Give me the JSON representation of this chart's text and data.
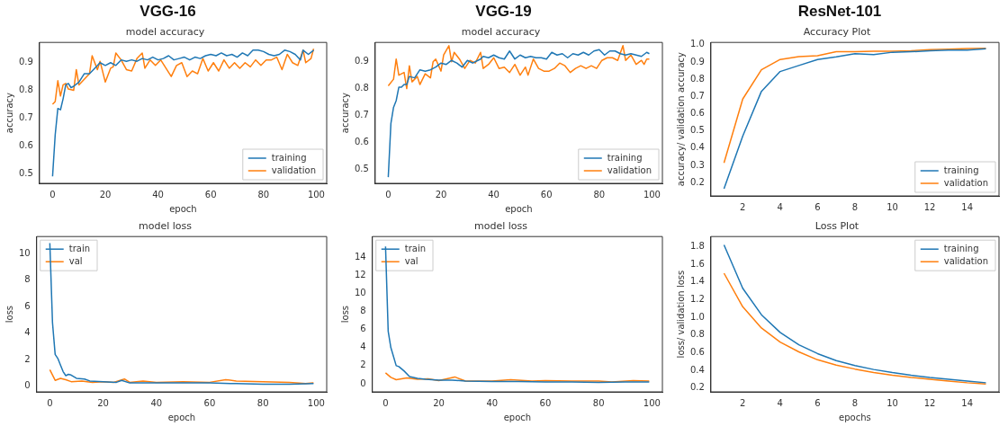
{
  "chart_data": [
    {
      "type": "line",
      "title": "VGG-16",
      "subtitle": "model accuracy",
      "xlabel": "epoch",
      "ylabel": "accuracy",
      "xlim": [
        -4.95,
        103.95
      ],
      "xticks": [
        0,
        20,
        40,
        60,
        80,
        100
      ],
      "ylim": [
        0.465,
        0.973
      ],
      "yticks": [
        0.5,
        0.6,
        0.7,
        0.8,
        0.9
      ],
      "grid": false,
      "legend": "bottom right",
      "series": [
        {
          "name": "training",
          "color": "#1f77b4",
          "x": [
            0,
            1,
            2,
            3,
            4,
            5,
            6,
            7,
            8,
            10,
            12,
            14,
            16,
            18,
            20,
            22,
            24,
            26,
            28,
            30,
            32,
            34,
            36,
            38,
            40,
            42,
            44,
            46,
            48,
            50,
            52,
            54,
            56,
            58,
            60,
            62,
            64,
            66,
            68,
            70,
            72,
            74,
            76,
            78,
            80,
            82,
            84,
            86,
            88,
            90,
            92,
            94,
            95,
            97,
            99
          ],
          "values": [
            0.49,
            0.64,
            0.735,
            0.73,
            0.77,
            0.82,
            0.825,
            0.81,
            0.815,
            0.83,
            0.86,
            0.86,
            0.88,
            0.9,
            0.89,
            0.9,
            0.89,
            0.91,
            0.905,
            0.91,
            0.905,
            0.915,
            0.91,
            0.92,
            0.91,
            0.915,
            0.925,
            0.91,
            0.915,
            0.92,
            0.91,
            0.92,
            0.915,
            0.925,
            0.93,
            0.925,
            0.935,
            0.925,
            0.93,
            0.92,
            0.935,
            0.925,
            0.945,
            0.945,
            0.94,
            0.93,
            0.925,
            0.93,
            0.945,
            0.94,
            0.93,
            0.91,
            0.945,
            0.93,
            0.945
          ]
        },
        {
          "name": "validation",
          "color": "#ff7f0e",
          "x": [
            0,
            1,
            2,
            3,
            4,
            5,
            6,
            8,
            9,
            10,
            12,
            14,
            15,
            17,
            18,
            20,
            22,
            23,
            24,
            26,
            28,
            30,
            32,
            34,
            35,
            37,
            39,
            41,
            43,
            45,
            47,
            49,
            51,
            53,
            55,
            57,
            59,
            61,
            63,
            65,
            67,
            69,
            71,
            73,
            75,
            77,
            79,
            81,
            83,
            85,
            87,
            89,
            91,
            93,
            95,
            96,
            98,
            99
          ],
          "values": [
            0.75,
            0.76,
            0.835,
            0.78,
            0.82,
            0.825,
            0.805,
            0.8,
            0.875,
            0.82,
            0.84,
            0.86,
            0.925,
            0.875,
            0.905,
            0.83,
            0.88,
            0.885,
            0.935,
            0.91,
            0.875,
            0.87,
            0.915,
            0.935,
            0.88,
            0.91,
            0.89,
            0.91,
            0.88,
            0.85,
            0.89,
            0.9,
            0.85,
            0.87,
            0.86,
            0.915,
            0.87,
            0.9,
            0.87,
            0.91,
            0.88,
            0.9,
            0.88,
            0.9,
            0.885,
            0.91,
            0.89,
            0.91,
            0.91,
            0.92,
            0.875,
            0.93,
            0.9,
            0.89,
            0.945,
            0.9,
            0.915,
            0.95
          ]
        }
      ]
    },
    {
      "type": "line",
      "title": "VGG-19",
      "subtitle": "model accuracy",
      "xlabel": "epoch",
      "ylabel": "accuracy",
      "xlim": [
        -4.95,
        103.95
      ],
      "xticks": [
        0,
        20,
        40,
        60,
        80,
        100
      ],
      "ylim": [
        0.447,
        0.972
      ],
      "yticks": [
        0.5,
        0.6,
        0.7,
        0.8,
        0.9
      ],
      "grid": false,
      "legend": "bottom right",
      "series": [
        {
          "name": "training",
          "color": "#1f77b4",
          "x": [
            0,
            1,
            2,
            3,
            4,
            5,
            6,
            7,
            8,
            10,
            12,
            14,
            16,
            18,
            20,
            22,
            24,
            26,
            28,
            30,
            32,
            35,
            36,
            38,
            40,
            42,
            44,
            46,
            48,
            50,
            52,
            54,
            56,
            58,
            60,
            62,
            64,
            66,
            68,
            70,
            72,
            74,
            76,
            78,
            80,
            82,
            84,
            86,
            88,
            90,
            92,
            94,
            96,
            98,
            99
          ],
          "values": [
            0.47,
            0.67,
            0.73,
            0.755,
            0.805,
            0.805,
            0.815,
            0.815,
            0.845,
            0.84,
            0.87,
            0.865,
            0.87,
            0.88,
            0.895,
            0.89,
            0.905,
            0.895,
            0.88,
            0.905,
            0.895,
            0.91,
            0.92,
            0.915,
            0.925,
            0.915,
            0.91,
            0.94,
            0.91,
            0.925,
            0.915,
            0.92,
            0.915,
            0.915,
            0.91,
            0.935,
            0.925,
            0.93,
            0.915,
            0.93,
            0.925,
            0.935,
            0.925,
            0.94,
            0.945,
            0.925,
            0.94,
            0.94,
            0.93,
            0.925,
            0.93,
            0.925,
            0.92,
            0.935,
            0.93
          ]
        },
        {
          "name": "validation",
          "color": "#ff7f0e",
          "x": [
            0,
            2,
            3,
            4,
            6,
            7,
            8,
            9,
            11,
            12,
            14,
            16,
            17,
            18,
            20,
            21,
            23,
            24,
            25,
            27,
            29,
            31,
            33,
            35,
            36,
            38,
            40,
            42,
            44,
            46,
            48,
            50,
            52,
            53,
            55,
            57,
            59,
            61,
            63,
            65,
            67,
            69,
            71,
            73,
            75,
            77,
            79,
            81,
            83,
            85,
            87,
            89,
            90,
            92,
            94,
            96,
            97,
            98,
            99
          ],
          "values": [
            0.81,
            0.835,
            0.91,
            0.85,
            0.86,
            0.8,
            0.885,
            0.825,
            0.845,
            0.815,
            0.855,
            0.84,
            0.9,
            0.91,
            0.865,
            0.925,
            0.96,
            0.9,
            0.935,
            0.91,
            0.875,
            0.905,
            0.895,
            0.935,
            0.875,
            0.89,
            0.915,
            0.875,
            0.88,
            0.86,
            0.89,
            0.85,
            0.88,
            0.85,
            0.91,
            0.875,
            0.865,
            0.865,
            0.875,
            0.895,
            0.885,
            0.86,
            0.875,
            0.885,
            0.875,
            0.885,
            0.875,
            0.905,
            0.915,
            0.915,
            0.905,
            0.96,
            0.905,
            0.925,
            0.89,
            0.905,
            0.89,
            0.91,
            0.91
          ]
        }
      ]
    },
    {
      "type": "line",
      "title": "ResNet-101",
      "subtitle": "Accuracy Plot",
      "ylabel": "accuracy/ validation accuracy",
      "xlim": [
        0.3,
        15.7
      ],
      "xticks": [
        2,
        4,
        6,
        8,
        10,
        12,
        14
      ],
      "ylim": [
        0.123,
        1.014
      ],
      "yticks": [
        0.2,
        0.3,
        0.4,
        0.5,
        0.6,
        0.7,
        0.8,
        0.9,
        {
          "value": 1,
          "label": "1.0"
        }
      ],
      "grid": false,
      "legend": "bottom right",
      "series": [
        {
          "name": "training",
          "color": "#1f77b4",
          "x": [
            1,
            2,
            3,
            4,
            5,
            6,
            7,
            8,
            9,
            10,
            11,
            12,
            13,
            14,
            15
          ],
          "values": [
            0.165,
            0.47,
            0.73,
            0.845,
            0.88,
            0.915,
            0.93,
            0.948,
            0.943,
            0.957,
            0.96,
            0.965,
            0.97,
            0.97,
            0.977
          ]
        },
        {
          "name": "validation",
          "color": "#ff7f0e",
          "x": [
            1,
            2,
            3,
            4,
            5,
            6,
            7,
            8,
            9,
            10,
            11,
            12,
            13,
            14,
            15
          ],
          "values": [
            0.315,
            0.685,
            0.855,
            0.915,
            0.932,
            0.937,
            0.96,
            0.96,
            0.963,
            0.963,
            0.965,
            0.972,
            0.975,
            0.978,
            0.98
          ]
        }
      ]
    },
    {
      "type": "line",
      "title": "model loss",
      "xlabel": "epoch",
      "ylabel": "loss",
      "xlim": [
        -4.95,
        103.95
      ],
      "xticks": [
        0,
        20,
        40,
        60,
        80,
        100
      ],
      "ylim": [
        -0.42,
        11.3
      ],
      "yticks": [
        0,
        2,
        4,
        6,
        8,
        10
      ],
      "grid": false,
      "legend": "top left",
      "series": [
        {
          "name": "train",
          "color": "#1f77b4",
          "x": [
            0,
            1,
            2,
            3,
            4,
            5,
            6,
            7,
            8,
            10,
            13,
            15,
            20,
            25,
            27,
            30,
            40,
            50,
            60,
            70,
            80,
            90,
            99
          ],
          "values": [
            10.8,
            4.8,
            2.4,
            2.1,
            1.6,
            1.1,
            0.8,
            0.9,
            0.85,
            0.6,
            0.55,
            0.4,
            0.35,
            0.3,
            0.45,
            0.25,
            0.25,
            0.25,
            0.25,
            0.2,
            0.15,
            0.15,
            0.2
          ]
        },
        {
          "name": "val",
          "color": "#ff7f0e",
          "x": [
            0,
            2,
            4,
            6,
            8,
            12,
            16,
            20,
            24,
            28,
            30,
            35,
            40,
            50,
            60,
            66,
            70,
            80,
            90,
            96,
            99
          ],
          "values": [
            1.25,
            0.45,
            0.6,
            0.5,
            0.35,
            0.4,
            0.3,
            0.35,
            0.3,
            0.55,
            0.3,
            0.4,
            0.3,
            0.35,
            0.3,
            0.5,
            0.4,
            0.35,
            0.3,
            0.2,
            0.25
          ]
        }
      ]
    },
    {
      "type": "line",
      "title": "model loss",
      "xlabel": "epoch",
      "ylabel": "loss",
      "xlim": [
        -4.95,
        103.95
      ],
      "xticks": [
        0,
        20,
        40,
        60,
        80,
        100
      ],
      "ylim": [
        -0.9,
        16.3
      ],
      "yticks": [
        0,
        2,
        4,
        6,
        8,
        10,
        12,
        14
      ],
      "grid": false,
      "legend": "top left",
      "series": [
        {
          "name": "train",
          "color": "#1f77b4",
          "x": [
            0,
            1,
            2,
            3,
            4,
            5,
            7,
            9,
            12,
            15,
            20,
            25,
            30,
            40,
            50,
            60,
            70,
            80,
            90,
            99
          ],
          "values": [
            15.2,
            5.8,
            4,
            3,
            2,
            1.9,
            1.4,
            0.8,
            0.6,
            0.5,
            0.4,
            0.4,
            0.3,
            0.25,
            0.25,
            0.2,
            0.2,
            0.15,
            0.2,
            0.2
          ]
        },
        {
          "name": "val",
          "color": "#ff7f0e",
          "x": [
            0,
            2,
            4,
            8,
            12,
            16,
            20,
            26,
            30,
            40,
            47,
            55,
            60,
            70,
            80,
            85,
            93,
            99
          ],
          "values": [
            1.2,
            0.7,
            0.45,
            0.65,
            0.5,
            0.55,
            0.35,
            0.75,
            0.3,
            0.3,
            0.45,
            0.3,
            0.35,
            0.3,
            0.3,
            0.2,
            0.35,
            0.3
          ]
        }
      ]
    },
    {
      "type": "line",
      "title": "Loss Plot",
      "xlabel": "epochs",
      "ylabel": "loss/ validation loss",
      "xlim": [
        0.3,
        15.7
      ],
      "xticks": [
        2,
        4,
        6,
        8,
        10,
        12,
        14
      ],
      "ylim": [
        0.157,
        1.915
      ],
      "yticks": [
        0.2,
        0.4,
        0.6,
        0.8,
        {
          "value": 1,
          "label": "1.0"
        },
        1.2,
        1.4,
        1.6,
        1.8
      ],
      "grid": false,
      "legend": "top right",
      "series": [
        {
          "name": "training",
          "color": "#1f77b4",
          "x": [
            1,
            2,
            3,
            4,
            5,
            6,
            7,
            8,
            9,
            10,
            11,
            12,
            13,
            14,
            15
          ],
          "values": [
            1.82,
            1.33,
            1.03,
            0.83,
            0.69,
            0.59,
            0.51,
            0.455,
            0.41,
            0.375,
            0.345,
            0.32,
            0.3,
            0.28,
            0.26
          ]
        },
        {
          "name": "validation",
          "color": "#ff7f0e",
          "x": [
            1,
            2,
            3,
            4,
            5,
            6,
            7,
            8,
            9,
            10,
            11,
            12,
            13,
            14,
            15
          ],
          "values": [
            1.5,
            1.12,
            0.88,
            0.72,
            0.61,
            0.52,
            0.46,
            0.415,
            0.375,
            0.345,
            0.32,
            0.3,
            0.28,
            0.26,
            0.245
          ]
        }
      ]
    }
  ]
}
